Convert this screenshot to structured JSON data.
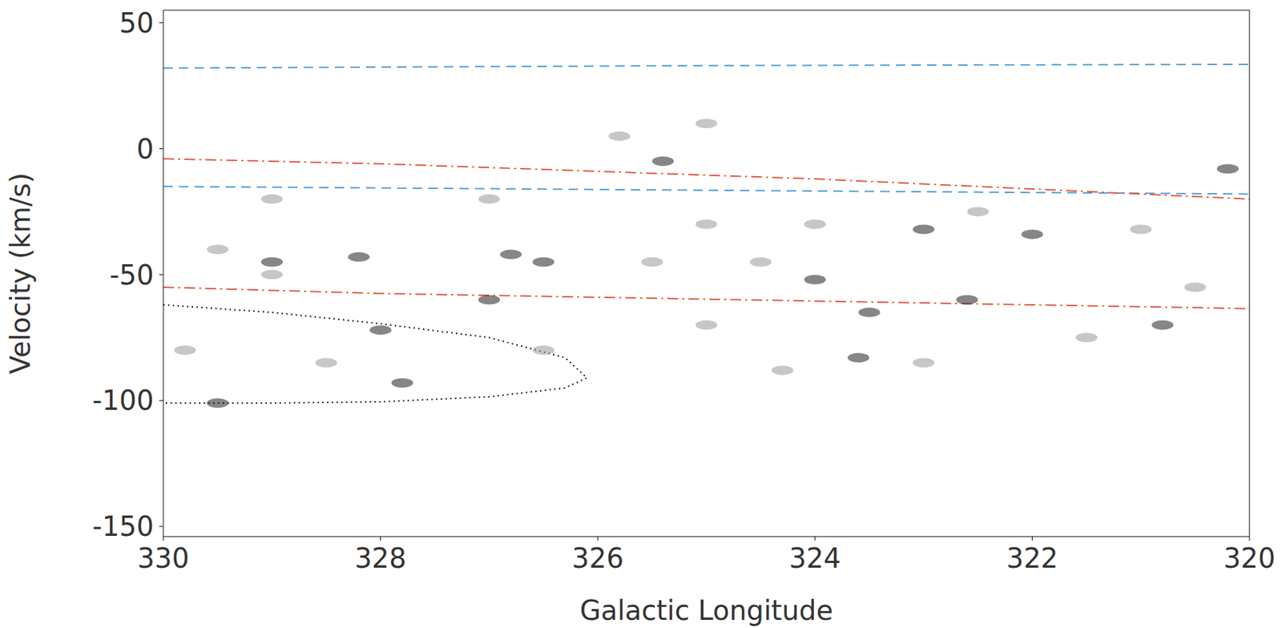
{
  "chart_data": {
    "type": "line",
    "x_label": "Galactic Longitude",
    "y_label": "Velocity (km/s)",
    "xlim": [
      330,
      320
    ],
    "xticks": [
      330,
      328,
      326,
      324,
      322,
      320
    ],
    "ylim": [
      -154,
      55
    ],
    "yticks": [
      -150,
      -100,
      -50,
      0,
      50
    ],
    "grid": false,
    "series": [
      {
        "type": "line",
        "color": "#4a9bd9",
        "line_style": "dashed",
        "x": [
          330,
          325,
          320
        ],
        "values": [
          32,
          33,
          33.5
        ]
      },
      {
        "type": "line",
        "color": "#4a9bd9",
        "line_style": "dashed",
        "x": [
          330,
          325,
          320
        ],
        "values": [
          -15,
          -16.5,
          -18
        ]
      },
      {
        "type": "line",
        "color": "#e0553a",
        "line_style": "dashdot",
        "x": [
          330,
          328,
          326,
          324,
          322,
          320
        ],
        "values": [
          -4,
          -6,
          -9,
          -12,
          -16,
          -20
        ]
      },
      {
        "type": "line",
        "color": "#e0553a",
        "line_style": "dashdot",
        "x": [
          330,
          328,
          326,
          324,
          322,
          320
        ],
        "values": [
          -55,
          -57.5,
          -59,
          -60.5,
          -62,
          -63.5
        ]
      },
      {
        "type": "line",
        "color": "#000000",
        "line_style": "dotted",
        "x": [
          330,
          329,
          328,
          327,
          326.3,
          326.1,
          326.3,
          327,
          328,
          329,
          330
        ],
        "values": [
          -62,
          -65,
          -69.5,
          -75,
          -83,
          -91,
          -95,
          -98.5,
          -100.5,
          -101,
          -101
        ]
      },
      {
        "type": "scatter",
        "color": "#222222",
        "marker": "circle",
        "x": [
          326.5,
          326.8,
          328.2,
          324,
          327,
          328,
          327.8,
          329.5,
          325.4,
          320.8,
          320.2,
          323,
          322,
          323.5,
          323.6,
          329,
          322.6
        ],
        "values": [
          -45,
          -42,
          -43,
          -52,
          -60,
          -72,
          -93,
          -101,
          -5,
          -70,
          -8,
          -32,
          -34,
          -65,
          -83,
          -45,
          -60
        ]
      },
      {
        "type": "scatter",
        "color": "#999999",
        "marker": "circle",
        "x": [
          329.5,
          329,
          328.5,
          329.8,
          325,
          324,
          321,
          325.5,
          324.5,
          325,
          324.3,
          321.5,
          320.5,
          327,
          329,
          325.8,
          325,
          322.5,
          326.5,
          323
        ],
        "values": [
          -40,
          -50,
          -85,
          -80,
          -30,
          -30,
          -32,
          -45,
          -45,
          -70,
          -88,
          -75,
          -55,
          -20,
          -20,
          5,
          10,
          -25,
          -80,
          -85
        ]
      }
    ]
  }
}
